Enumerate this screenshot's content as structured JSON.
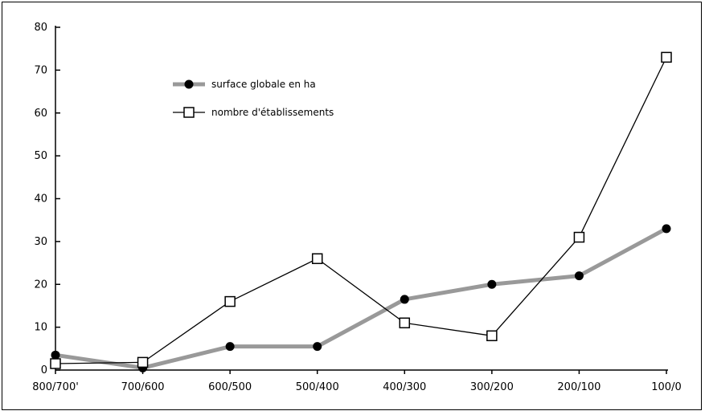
{
  "chart_data": {
    "type": "line",
    "categories": [
      "800/700'",
      "700/600",
      "600/500",
      "500/400",
      "400/300",
      "300/200",
      "200/100",
      "100/0"
    ],
    "ylim": [
      0,
      80
    ],
    "yticks": [
      0,
      10,
      20,
      30,
      40,
      50,
      60,
      70,
      80
    ],
    "grid": false,
    "legend_position": "top-left",
    "series": [
      {
        "name": "surface globale en ha",
        "values": [
          3.5,
          0.5,
          5.5,
          5.5,
          16.5,
          20,
          22,
          33
        ],
        "color": "#999999",
        "marker": "filled-circle",
        "marker_color": "#000000"
      },
      {
        "name": "nombre d'établissements",
        "values": [
          1.5,
          1.8,
          16,
          26,
          11,
          8,
          31,
          73
        ],
        "color": "#000000",
        "marker": "open-square",
        "marker_color": "#000000"
      }
    ]
  }
}
